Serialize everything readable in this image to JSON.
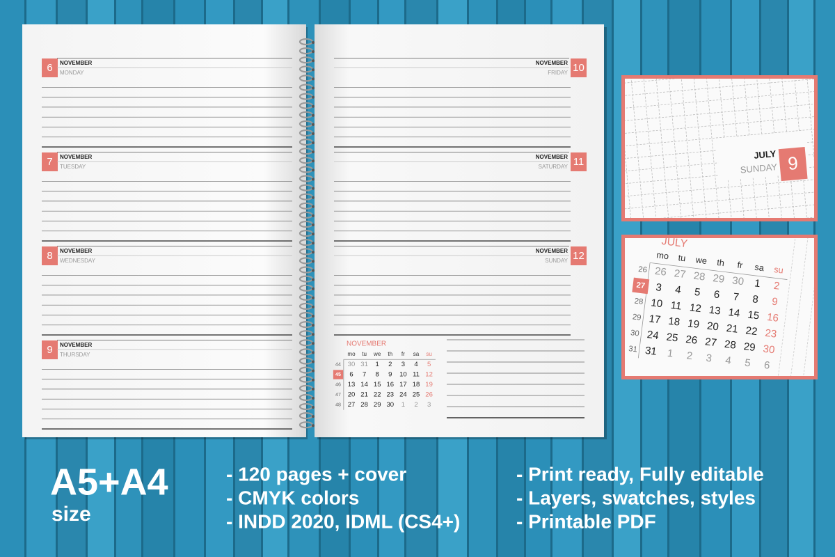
{
  "planner": {
    "left_page": [
      {
        "day": "6",
        "month": "NOVEMBER",
        "weekday": "MONDAY"
      },
      {
        "day": "7",
        "month": "NOVEMBER",
        "weekday": "TUESDAY"
      },
      {
        "day": "8",
        "month": "NOVEMBER",
        "weekday": "WEDNESDAY"
      },
      {
        "day": "9",
        "month": "NOVEMBER",
        "weekday": "THURSDAY"
      }
    ],
    "right_page": [
      {
        "day": "10",
        "month": "NOVEMBER",
        "weekday": "FRIDAY"
      },
      {
        "day": "11",
        "month": "NOVEMBER",
        "weekday": "SATURDAY"
      },
      {
        "day": "12",
        "month": "NOVEMBER",
        "weekday": "SUNDAY"
      }
    ],
    "mini_calendar": {
      "month": "NOVEMBER",
      "weekdays": [
        "mo",
        "tu",
        "we",
        "th",
        "fr",
        "sa",
        "su"
      ],
      "weeks": [
        {
          "number": "44",
          "days": [
            "30",
            "31",
            "1",
            "2",
            "3",
            "4",
            "5"
          ]
        },
        {
          "number": "45",
          "days": [
            "6",
            "7",
            "8",
            "9",
            "10",
            "11",
            "12"
          ]
        },
        {
          "number": "46",
          "days": [
            "13",
            "14",
            "15",
            "16",
            "17",
            "18",
            "19"
          ]
        },
        {
          "number": "47",
          "days": [
            "20",
            "21",
            "22",
            "23",
            "24",
            "25",
            "26"
          ]
        },
        {
          "number": "48",
          "days": [
            "27",
            "28",
            "29",
            "30",
            "1",
            "2",
            "3"
          ]
        }
      ]
    }
  },
  "preview_day": {
    "month": "JULY",
    "weekday": "SUNDAY",
    "day": "9"
  },
  "preview_calendar": {
    "month": "JULY",
    "weekdays": [
      "mo",
      "tu",
      "we",
      "th",
      "fr",
      "sa",
      "su"
    ],
    "weeks": [
      {
        "number": "26",
        "days": [
          "26",
          "27",
          "28",
          "29",
          "30",
          "1",
          "2"
        ]
      },
      {
        "number": "27",
        "days": [
          "3",
          "4",
          "5",
          "6",
          "7",
          "8",
          "9"
        ]
      },
      {
        "number": "28",
        "days": [
          "10",
          "11",
          "12",
          "13",
          "14",
          "15",
          "16"
        ]
      },
      {
        "number": "29",
        "days": [
          "17",
          "18",
          "19",
          "20",
          "21",
          "22",
          "23"
        ]
      },
      {
        "number": "30",
        "days": [
          "24",
          "25",
          "26",
          "27",
          "28",
          "29",
          "30"
        ]
      },
      {
        "number": "31",
        "days": [
          "31",
          "1",
          "2",
          "3",
          "4",
          "5",
          "6"
        ]
      }
    ]
  },
  "size": {
    "title": "A5+A4",
    "subtitle": "size"
  },
  "features": [
    [
      "- 120 pages + cover",
      "- CMYK colors",
      "- INDD 2020, IDML (CS4+)"
    ],
    [
      "- Print ready, Fully editable",
      "- Layers, swatches, styles",
      "- Printable PDF"
    ]
  ]
}
